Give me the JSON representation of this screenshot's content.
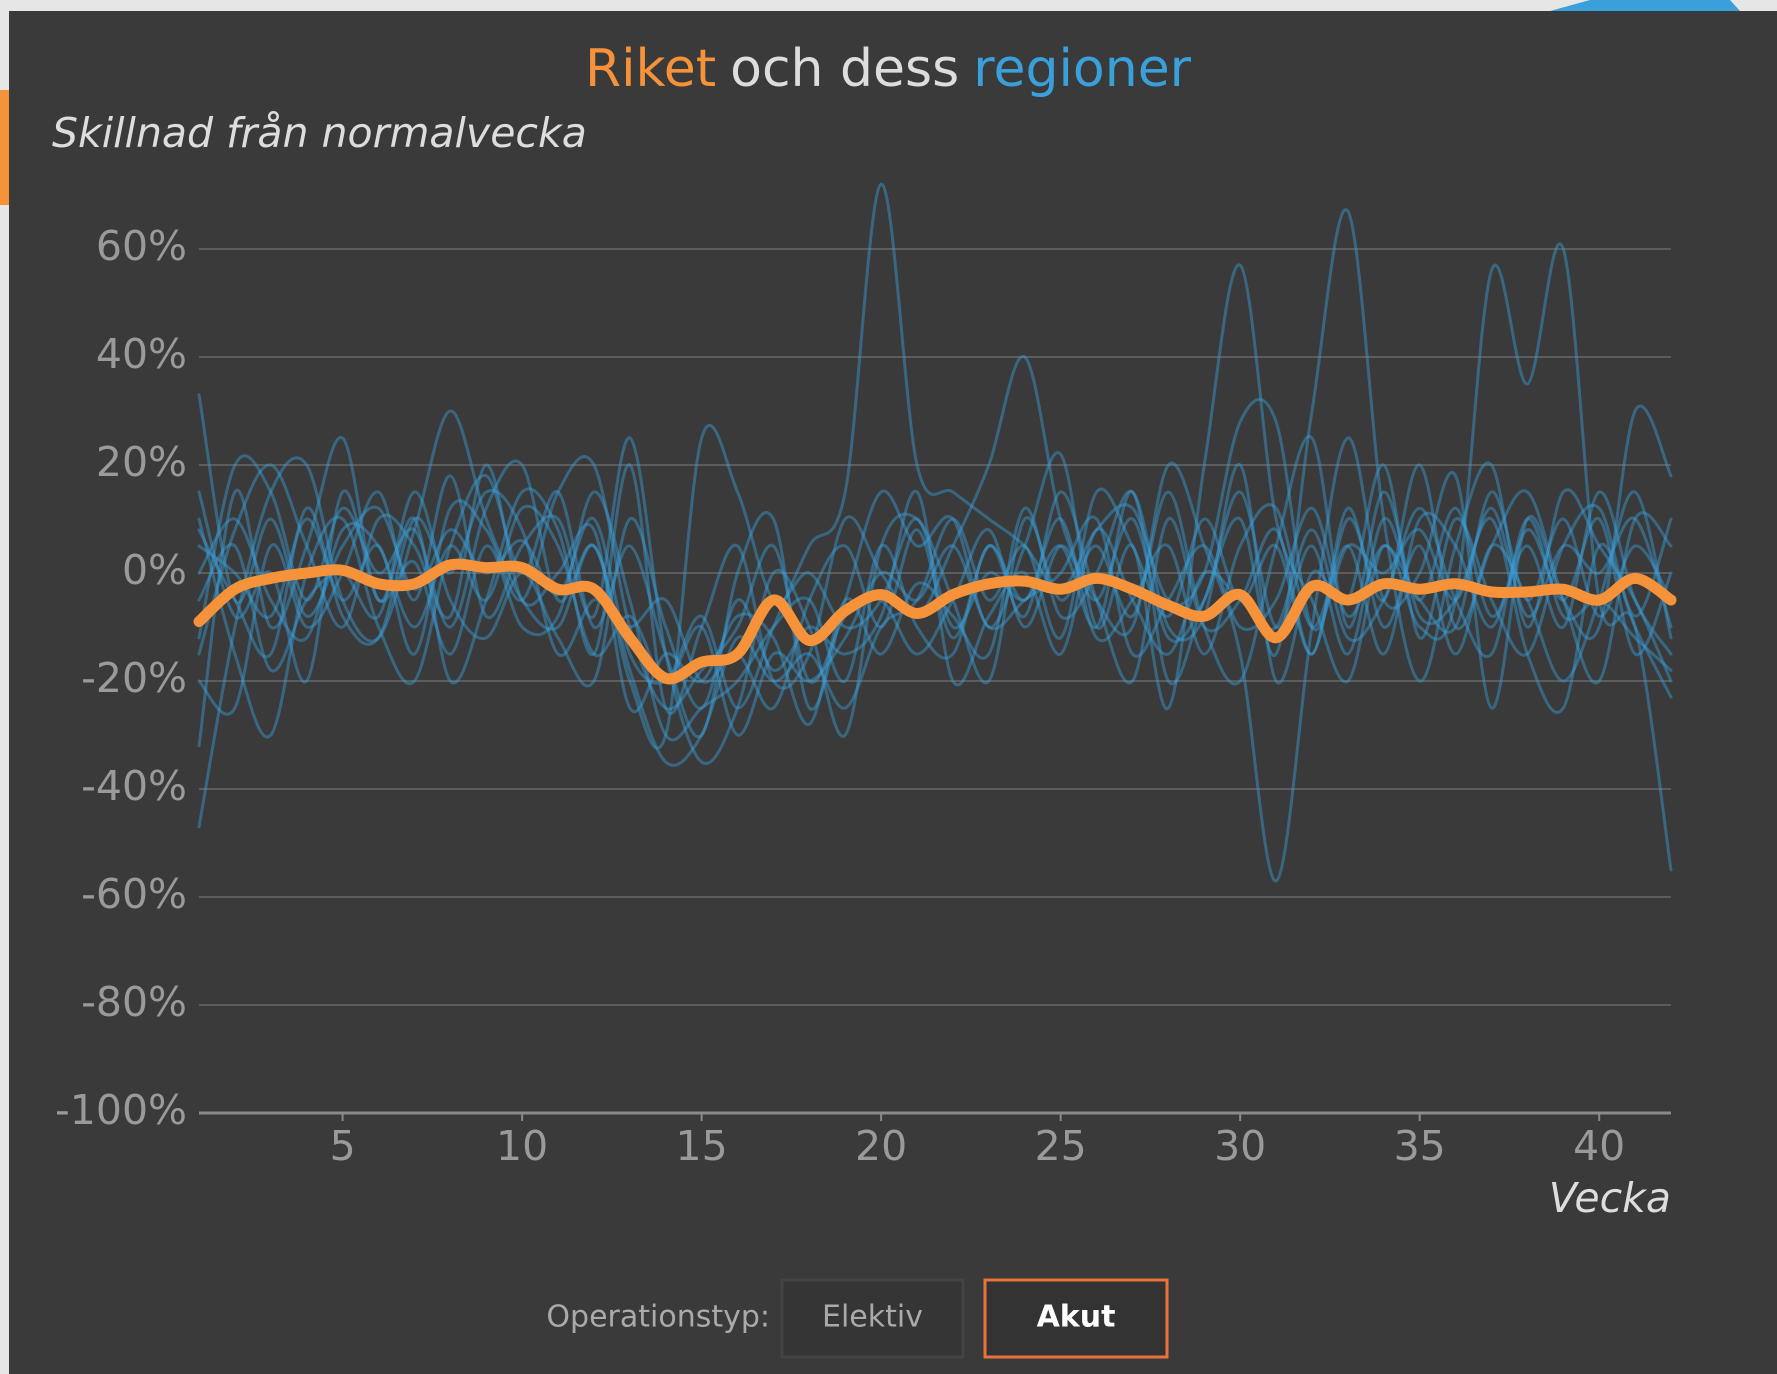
{
  "chart_data": {
    "type": "line",
    "title_joiner": "och dess",
    "y_label": "Skillnad från normalvecka",
    "x_label": "Vecka",
    "x": [
      1,
      2,
      3,
      4,
      5,
      6,
      7,
      8,
      9,
      10,
      11,
      12,
      13,
      14,
      15,
      16,
      17,
      18,
      19,
      20,
      21,
      22,
      23,
      24,
      25,
      26,
      27,
      28,
      29,
      30,
      31,
      32,
      33,
      34,
      35,
      36,
      37,
      38,
      39,
      40,
      41,
      42
    ],
    "xlim": [
      1,
      42
    ],
    "xticks": [
      5,
      10,
      15,
      20,
      25,
      30,
      35,
      40
    ],
    "ylim": [
      -100,
      75
    ],
    "yticks": [
      {
        "value": -100,
        "label": "-100%"
      },
      {
        "value": -80,
        "label": "-80%"
      },
      {
        "value": -60,
        "label": "-60%"
      },
      {
        "value": -40,
        "label": "-40%"
      },
      {
        "value": -20,
        "label": "-20%"
      },
      {
        "value": 0,
        "label": "0%"
      },
      {
        "value": 20,
        "label": "20%"
      },
      {
        "value": 40,
        "label": "40%"
      },
      {
        "value": 60,
        "label": "60%"
      }
    ],
    "grid": true,
    "regions": {
      "name": "regioner",
      "color": "#3aa0dc",
      "values": [
        [
          33,
          -5,
          10,
          -8,
          5,
          12,
          -3,
          8,
          0,
          6,
          -4,
          10,
          -15,
          -20,
          -8,
          -25,
          -10,
          5,
          15,
          72,
          20,
          15,
          10,
          5,
          -3,
          8,
          12,
          -5,
          0,
          28,
          28,
          -10,
          5,
          0,
          8,
          -5,
          12,
          -8,
          5,
          0,
          10,
          -10
        ],
        [
          -47,
          -10,
          15,
          20,
          -5,
          -12,
          8,
          30,
          10,
          -5,
          -10,
          5,
          -20,
          -30,
          25,
          15,
          -5,
          0,
          -10,
          -5,
          10,
          -10,
          0,
          -5,
          5,
          -10,
          15,
          -20,
          -5,
          10,
          -15,
          30,
          67,
          10,
          -20,
          5,
          20,
          -10,
          15,
          5,
          -5,
          -20
        ],
        [
          -32,
          15,
          -10,
          5,
          25,
          -5,
          10,
          -20,
          -5,
          15,
          8,
          -15,
          20,
          -25,
          -10,
          5,
          -20,
          -15,
          10,
          0,
          -8,
          5,
          20,
          40,
          10,
          -5,
          -10,
          20,
          5,
          -15,
          -57,
          -10,
          25,
          -5,
          0,
          18,
          -25,
          10,
          -5,
          -10,
          30,
          18
        ],
        [
          10,
          -15,
          -30,
          0,
          10,
          -10,
          -20,
          5,
          18,
          0,
          15,
          -10,
          5,
          -15,
          -30,
          0,
          10,
          -25,
          -5,
          15,
          5,
          10,
          -10,
          5,
          22,
          -10,
          5,
          -25,
          20,
          57,
          10,
          -5,
          -20,
          5,
          -10,
          -5,
          56,
          35,
          60,
          -5,
          -10,
          -55
        ],
        [
          5,
          0,
          -8,
          10,
          -5,
          5,
          -15,
          12,
          8,
          -5,
          15,
          20,
          -10,
          -25,
          -18,
          -10,
          5,
          -20,
          -8,
          -5,
          -15,
          -5,
          8,
          -10,
          5,
          -5,
          10,
          -12,
          -5,
          15,
          -10,
          5,
          -15,
          10,
          -5,
          12,
          -8,
          5,
          -10,
          15,
          -5,
          -15
        ],
        [
          -12,
          20,
          15,
          -5,
          12,
          0,
          8,
          -10,
          12,
          20,
          -5,
          5,
          -18,
          -35,
          -30,
          -12,
          -20,
          -15,
          -25,
          -10,
          -5,
          10,
          -5,
          5,
          -12,
          15,
          5,
          -8,
          10,
          -5,
          5,
          -15,
          10,
          -5,
          20,
          -10,
          5,
          15,
          -5,
          -20,
          10,
          5
        ],
        [
          -20,
          -25,
          5,
          -10,
          0,
          15,
          -5,
          18,
          -8,
          5,
          10,
          -8,
          25,
          -15,
          -35,
          -25,
          0,
          -10,
          -30,
          5,
          10,
          -5,
          -20,
          10,
          -5,
          5,
          -8,
          15,
          -10,
          -20,
          5,
          25,
          -10,
          15,
          -8,
          -5,
          10,
          -15,
          -25,
          5,
          -10,
          -23
        ],
        [
          8,
          -5,
          -15,
          12,
          -8,
          -12,
          10,
          0,
          15,
          8,
          -15,
          -5,
          -10,
          -5,
          -20,
          -15,
          -25,
          -5,
          5,
          -10,
          8,
          -12,
          5,
          -5,
          10,
          -12,
          -5,
          5,
          -15,
          5,
          12,
          -10,
          5,
          -15,
          10,
          5,
          -10,
          8,
          -5,
          10,
          -15,
          0
        ],
        [
          0,
          10,
          -5,
          -12,
          8,
          5,
          -10,
          5,
          -5,
          12,
          5,
          -15,
          -8,
          -20,
          -10,
          -30,
          -15,
          -20,
          -12,
          0,
          -5,
          5,
          -10,
          -5,
          0,
          10,
          -15,
          -5,
          5,
          -10,
          -5,
          12,
          -8,
          5,
          -5,
          -10,
          15,
          -5,
          10,
          -8,
          5,
          -5
        ],
        [
          -15,
          8,
          20,
          5,
          -10,
          10,
          5,
          -8,
          20,
          -5,
          0,
          8,
          -25,
          -15,
          -20,
          -8,
          -12,
          -28,
          -5,
          -15,
          -2,
          -8,
          -15,
          12,
          -8,
          0,
          15,
          -10,
          -8,
          20,
          -20,
          0,
          -5,
          20,
          -12,
          10,
          -5,
          -15,
          5,
          12,
          -8,
          10
        ],
        [
          15,
          -8,
          0,
          -20,
          15,
          -5,
          2,
          -15,
          5,
          -10,
          -8,
          15,
          -5,
          -30,
          -25,
          -20,
          -10,
          -5,
          -20,
          5,
          -10,
          -15,
          5,
          -8,
          15,
          -5,
          -20,
          10,
          -10,
          -5,
          8,
          -15,
          12,
          -10,
          5,
          -15,
          5,
          -5,
          -20,
          -5,
          15,
          -12
        ],
        [
          -5,
          5,
          -18,
          -5,
          0,
          -8,
          15,
          -5,
          -12,
          0,
          -12,
          -20,
          10,
          -10,
          -25,
          -5,
          -18,
          -10,
          -15,
          -8,
          15,
          -20,
          -8,
          0,
          -15,
          8,
          -5,
          -15,
          0,
          -5,
          -10,
          8,
          -12,
          -5,
          12,
          -5,
          -15,
          10,
          -8,
          -5,
          -12,
          -18
        ]
      ]
    },
    "series": [
      {
        "name": "Riket",
        "color": "#f5923a",
        "values": [
          -9,
          -3,
          -1,
          0,
          0.5,
          -2,
          -2,
          1.5,
          1,
          1,
          -3,
          -3,
          -12,
          -19.5,
          -16.5,
          -15,
          -5,
          -12.5,
          -7,
          -4,
          -7.5,
          -4,
          -2,
          -1.5,
          -3,
          -1,
          -3,
          -6,
          -8,
          -4,
          -12,
          -2.5,
          -5,
          -2,
          -3,
          -2,
          -3.5,
          -3.5,
          -3,
          -5,
          -1,
          -5
        ]
      }
    ]
  },
  "controls": {
    "label": "Operationstyp:",
    "options": [
      "Elektiv",
      "Akut"
    ],
    "selected": "Akut"
  }
}
